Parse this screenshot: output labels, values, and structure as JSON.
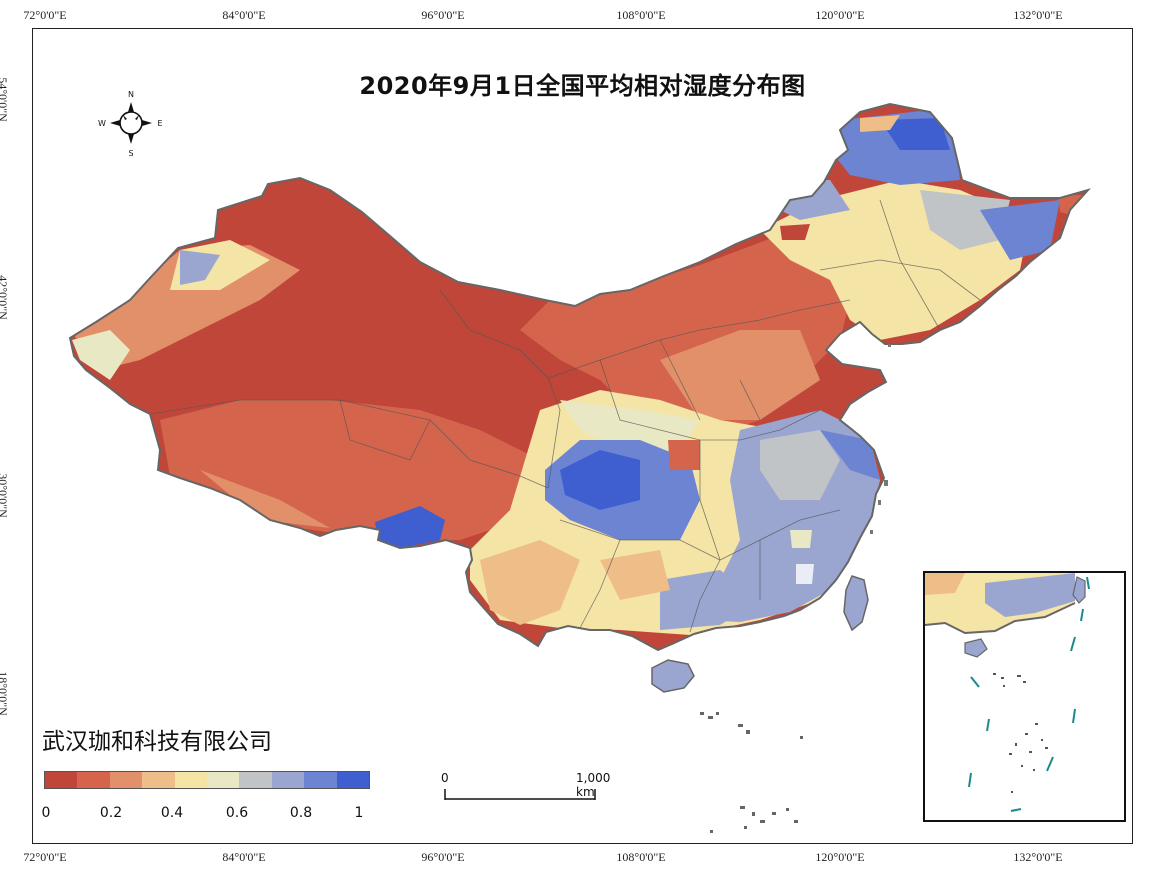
{
  "title": "2020年9月1日全国平均相对湿度分布图",
  "organization": "武汉珈和科技有限公司",
  "graticule": {
    "longitudes": [
      "72°0'0\"E",
      "84°0'0\"E",
      "96°0'0\"E",
      "108°0'0\"E",
      "120°0'0\"E",
      "132°0'0\"E"
    ],
    "latitudes": [
      "54°0'0\"N",
      "42°0'0\"N",
      "30°0'0\"N",
      "18°0'0\"N"
    ]
  },
  "compass": {
    "north": "N",
    "south": "S",
    "east": "E",
    "west": "W"
  },
  "legend": {
    "labels": [
      "0",
      "0.2",
      "0.4",
      "0.6",
      "0.8",
      "1"
    ],
    "colors": [
      "#c0463a",
      "#d4654c",
      "#e1906a",
      "#eebd88",
      "#f4e4a6",
      "#e9e8c4",
      "#c0c4c6",
      "#9aa6cf",
      "#6d84d3",
      "#3f5fd0"
    ]
  },
  "scale_bar": {
    "start": "0",
    "end": "1,000 km"
  }
}
